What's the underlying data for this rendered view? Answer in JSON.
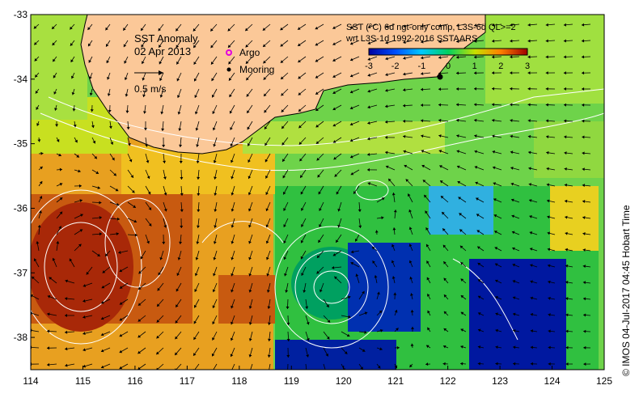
{
  "map": {
    "title": "SST Anomaly",
    "date": "02 Apr 2013",
    "velocity_scale_label": "0.5 m/s",
    "legend": {
      "argo": "Argo",
      "mooring": "Mooring"
    },
    "colorbar": {
      "title_line1": "SST (°C) 6d ngt-only comp, L3S-6d QL>=2",
      "title_line2": "wrt L3S-1d 1992-2016 SSTAARS",
      "ticks": [
        "-3",
        "-2",
        "-1",
        "0",
        "1",
        "2",
        "3"
      ],
      "range": [
        -3,
        3
      ]
    },
    "credit": "© IMOS 04-Jul-2017 04:45 Hobart Time",
    "x_axis": {
      "ticks": [
        "114",
        "115",
        "116",
        "117",
        "118",
        "119",
        "120",
        "121",
        "122",
        "123",
        "124",
        "125"
      ],
      "range": [
        114,
        125
      ]
    },
    "y_axis": {
      "ticks": [
        "-33",
        "-34",
        "-35",
        "-36",
        "-37",
        "-38"
      ],
      "range": [
        -38.5,
        -33
      ]
    },
    "mooring_location": {
      "lon": 121.9,
      "lat": -33.95
    },
    "colors": {
      "land": "#fbc898",
      "frame": "#000000",
      "contour": "#ffffff"
    }
  }
}
